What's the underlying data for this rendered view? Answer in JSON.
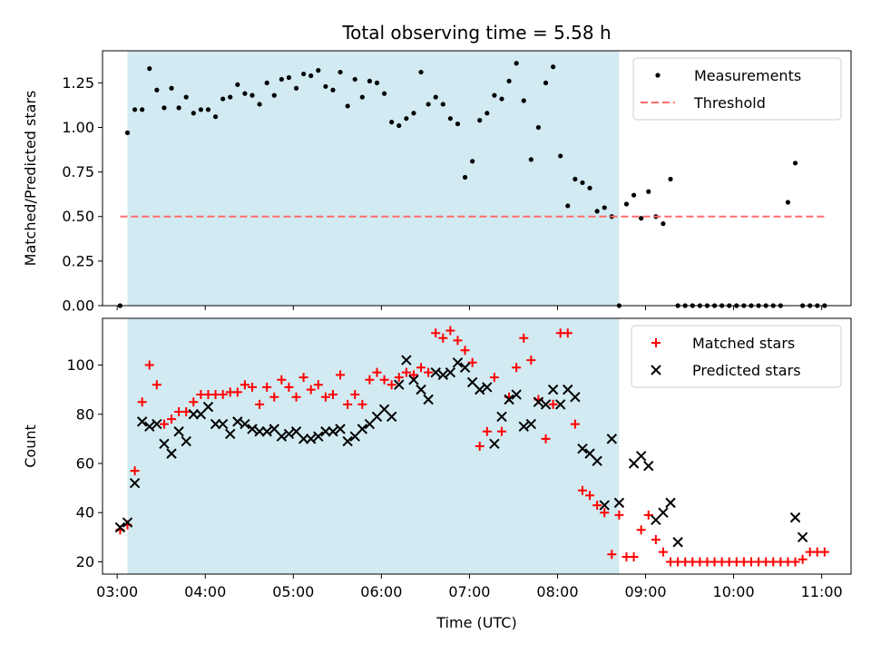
{
  "colors": {
    "shade": "#add8e6",
    "threshold": "#ff6b6b",
    "measure": "#000000",
    "matched": "#ff0000",
    "predicted": "#000000"
  },
  "chart_data": [
    {
      "type": "scatter",
      "title": "Total observing time = 5.58 h",
      "xlabel": "",
      "ylabel": "Matched/Predicted stars",
      "xlim": [
        "02:50",
        "11:20"
      ],
      "ylim": [
        0,
        1.43
      ],
      "yticks": [
        "0.00",
        "0.25",
        "0.50",
        "0.75",
        "1.00",
        "1.25"
      ],
      "shaded_span": [
        "03:07",
        "08:42"
      ],
      "legend_position": "upper-right",
      "series": [
        {
          "name": "Measurements",
          "marker": "dot",
          "x": [
            "03:02",
            "03:07",
            "03:12",
            "03:17",
            "03:22",
            "03:27",
            "03:32",
            "03:37",
            "03:42",
            "03:47",
            "03:52",
            "03:57",
            "04:02",
            "04:07",
            "04:12",
            "04:17",
            "04:22",
            "04:27",
            "04:32",
            "04:37",
            "04:42",
            "04:47",
            "04:52",
            "04:57",
            "05:02",
            "05:07",
            "05:12",
            "05:17",
            "05:22",
            "05:27",
            "05:32",
            "05:37",
            "05:42",
            "05:47",
            "05:52",
            "05:57",
            "06:02",
            "06:07",
            "06:12",
            "06:17",
            "06:22",
            "06:27",
            "06:32",
            "06:37",
            "06:42",
            "06:47",
            "06:52",
            "06:57",
            "07:02",
            "07:07",
            "07:12",
            "07:17",
            "07:22",
            "07:27",
            "07:32",
            "07:37",
            "07:42",
            "07:47",
            "07:52",
            "07:57",
            "08:02",
            "08:07",
            "08:12",
            "08:17",
            "08:22",
            "08:27",
            "08:32",
            "08:37",
            "08:42",
            "08:47",
            "08:52",
            "08:57",
            "09:02",
            "09:07",
            "09:12",
            "09:17",
            "09:22",
            "09:27",
            "09:32",
            "09:37",
            "09:42",
            "09:47",
            "09:52",
            "09:57",
            "10:02",
            "10:07",
            "10:12",
            "10:17",
            "10:22",
            "10:27",
            "10:32",
            "10:37",
            "10:42",
            "10:47",
            "10:52",
            "10:57",
            "11:02"
          ],
          "y": [
            0.0,
            0.97,
            1.1,
            1.1,
            1.33,
            1.21,
            1.11,
            1.22,
            1.11,
            1.17,
            1.08,
            1.1,
            1.1,
            1.06,
            1.16,
            1.17,
            1.24,
            1.19,
            1.18,
            1.13,
            1.25,
            1.18,
            1.27,
            1.28,
            1.22,
            1.3,
            1.29,
            1.32,
            1.23,
            1.21,
            1.31,
            1.12,
            1.27,
            1.17,
            1.26,
            1.25,
            1.19,
            1.03,
            1.01,
            1.05,
            1.08,
            1.31,
            1.13,
            1.17,
            1.13,
            1.05,
            1.02,
            0.72,
            0.81,
            1.04,
            1.08,
            1.18,
            1.16,
            1.26,
            1.36,
            1.15,
            0.82,
            1.0,
            1.25,
            1.34,
            0.84,
            0.56,
            0.71,
            0.69,
            0.66,
            0.53,
            0.55,
            0.5,
            0.0,
            0.57,
            0.62,
            0.49,
            0.64,
            0.5,
            0.46,
            0.71,
            0.0,
            0.0,
            0.0,
            0.0,
            0.0,
            0.0,
            0.0,
            0.0,
            0.0,
            0.0,
            0.0,
            0.0,
            0.0,
            0.0,
            0.0,
            0.58,
            0.8,
            0.0,
            0.0,
            0.0,
            0.0
          ]
        },
        {
          "name": "Threshold",
          "style": "dashed",
          "x": [
            "03:02",
            "11:02"
          ],
          "y": [
            0.5,
            0.5
          ]
        }
      ]
    },
    {
      "type": "scatter",
      "title": "",
      "xlabel": "Time (UTC)",
      "ylabel": "Count",
      "xlim": [
        "02:50",
        "11:20"
      ],
      "ylim": [
        15,
        119
      ],
      "xticks": [
        "03:00",
        "04:00",
        "05:00",
        "06:00",
        "07:00",
        "08:00",
        "09:00",
        "10:00",
        "11:00"
      ],
      "yticks": [
        "20",
        "40",
        "60",
        "80",
        "100"
      ],
      "shaded_span": [
        "03:07",
        "08:42"
      ],
      "legend_position": "upper-right",
      "series": [
        {
          "name": "Matched stars",
          "marker": "plus",
          "x": [
            "03:02",
            "03:07",
            "03:12",
            "03:17",
            "03:22",
            "03:27",
            "03:32",
            "03:37",
            "03:42",
            "03:47",
            "03:52",
            "03:57",
            "04:02",
            "04:07",
            "04:12",
            "04:17",
            "04:22",
            "04:27",
            "04:32",
            "04:37",
            "04:42",
            "04:47",
            "04:52",
            "04:57",
            "05:02",
            "05:07",
            "05:12",
            "05:17",
            "05:22",
            "05:27",
            "05:32",
            "05:37",
            "05:42",
            "05:47",
            "05:52",
            "05:57",
            "06:02",
            "06:07",
            "06:12",
            "06:17",
            "06:22",
            "06:27",
            "06:32",
            "06:37",
            "06:42",
            "06:47",
            "06:52",
            "06:57",
            "07:02",
            "07:07",
            "07:12",
            "07:17",
            "07:22",
            "07:27",
            "07:32",
            "07:37",
            "07:42",
            "07:47",
            "07:52",
            "07:57",
            "08:02",
            "08:07",
            "08:12",
            "08:17",
            "08:22",
            "08:27",
            "08:32",
            "08:37",
            "08:42",
            "08:47",
            "08:52",
            "08:57",
            "09:02",
            "09:07",
            "09:12",
            "09:17",
            "09:22",
            "09:27",
            "09:32",
            "09:37",
            "09:42",
            "09:47",
            "09:52",
            "09:57",
            "10:02",
            "10:07",
            "10:12",
            "10:17",
            "10:22",
            "10:27",
            "10:32",
            "10:37",
            "10:42",
            "10:47",
            "10:52",
            "10:57",
            "11:02"
          ],
          "y": [
            33,
            35,
            57,
            85,
            100,
            92,
            76,
            78,
            81,
            81,
            85,
            88,
            88,
            88,
            88,
            89,
            89,
            92,
            91,
            84,
            91,
            87,
            94,
            91,
            87,
            95,
            90,
            92,
            87,
            88,
            96,
            84,
            88,
            84,
            94,
            97,
            94,
            92,
            95,
            97,
            96,
            99,
            97,
            113,
            111,
            114,
            110,
            106,
            101,
            67,
            73,
            95,
            73,
            87,
            99,
            111,
            102,
            86,
            70,
            84,
            113,
            113,
            76,
            49,
            47,
            43,
            40,
            23,
            39,
            22,
            22,
            33,
            39,
            29,
            24,
            20,
            20,
            20,
            20,
            20,
            20,
            20,
            20,
            20,
            20,
            20,
            20,
            20,
            20,
            20,
            20,
            20,
            20,
            21,
            24,
            24,
            24
          ]
        },
        {
          "name": "Predicted stars",
          "marker": "x",
          "x": [
            "03:02",
            "03:07",
            "03:12",
            "03:17",
            "03:22",
            "03:27",
            "03:32",
            "03:37",
            "03:42",
            "03:47",
            "03:52",
            "03:57",
            "04:02",
            "04:07",
            "04:12",
            "04:17",
            "04:22",
            "04:27",
            "04:32",
            "04:37",
            "04:42",
            "04:47",
            "04:52",
            "04:57",
            "05:02",
            "05:07",
            "05:12",
            "05:17",
            "05:22",
            "05:27",
            "05:32",
            "05:37",
            "05:42",
            "05:47",
            "05:52",
            "05:57",
            "06:02",
            "06:07",
            "06:12",
            "06:17",
            "06:22",
            "06:27",
            "06:32",
            "06:37",
            "06:42",
            "06:47",
            "06:52",
            "06:57",
            "07:02",
            "07:07",
            "07:12",
            "07:17",
            "07:22",
            "07:27",
            "07:32",
            "07:37",
            "07:42",
            "07:47",
            "07:52",
            "07:57",
            "08:02",
            "08:07",
            "08:12",
            "08:17",
            "08:22",
            "08:27",
            "08:32",
            "08:37",
            "08:42",
            "08:52",
            "08:57",
            "09:02",
            "09:07",
            "09:12",
            "09:17",
            "09:22",
            "10:42",
            "10:47"
          ],
          "y": [
            34,
            36,
            52,
            77,
            75,
            76,
            68,
            64,
            73,
            69,
            80,
            80,
            83,
            76,
            76,
            72,
            77,
            76,
            74,
            73,
            73,
            74,
            71,
            72,
            73,
            70,
            70,
            71,
            73,
            73,
            74,
            69,
            71,
            74,
            76,
            79,
            82,
            79,
            92,
            102,
            94,
            90,
            86,
            97,
            96,
            97,
            101,
            99,
            93,
            90,
            91,
            68,
            79,
            86,
            88,
            75,
            76,
            85,
            84,
            90,
            84,
            90,
            87,
            66,
            64,
            61,
            43,
            70,
            44,
            60,
            63,
            59,
            37,
            40,
            44,
            28,
            38,
            30
          ]
        }
      ]
    }
  ]
}
